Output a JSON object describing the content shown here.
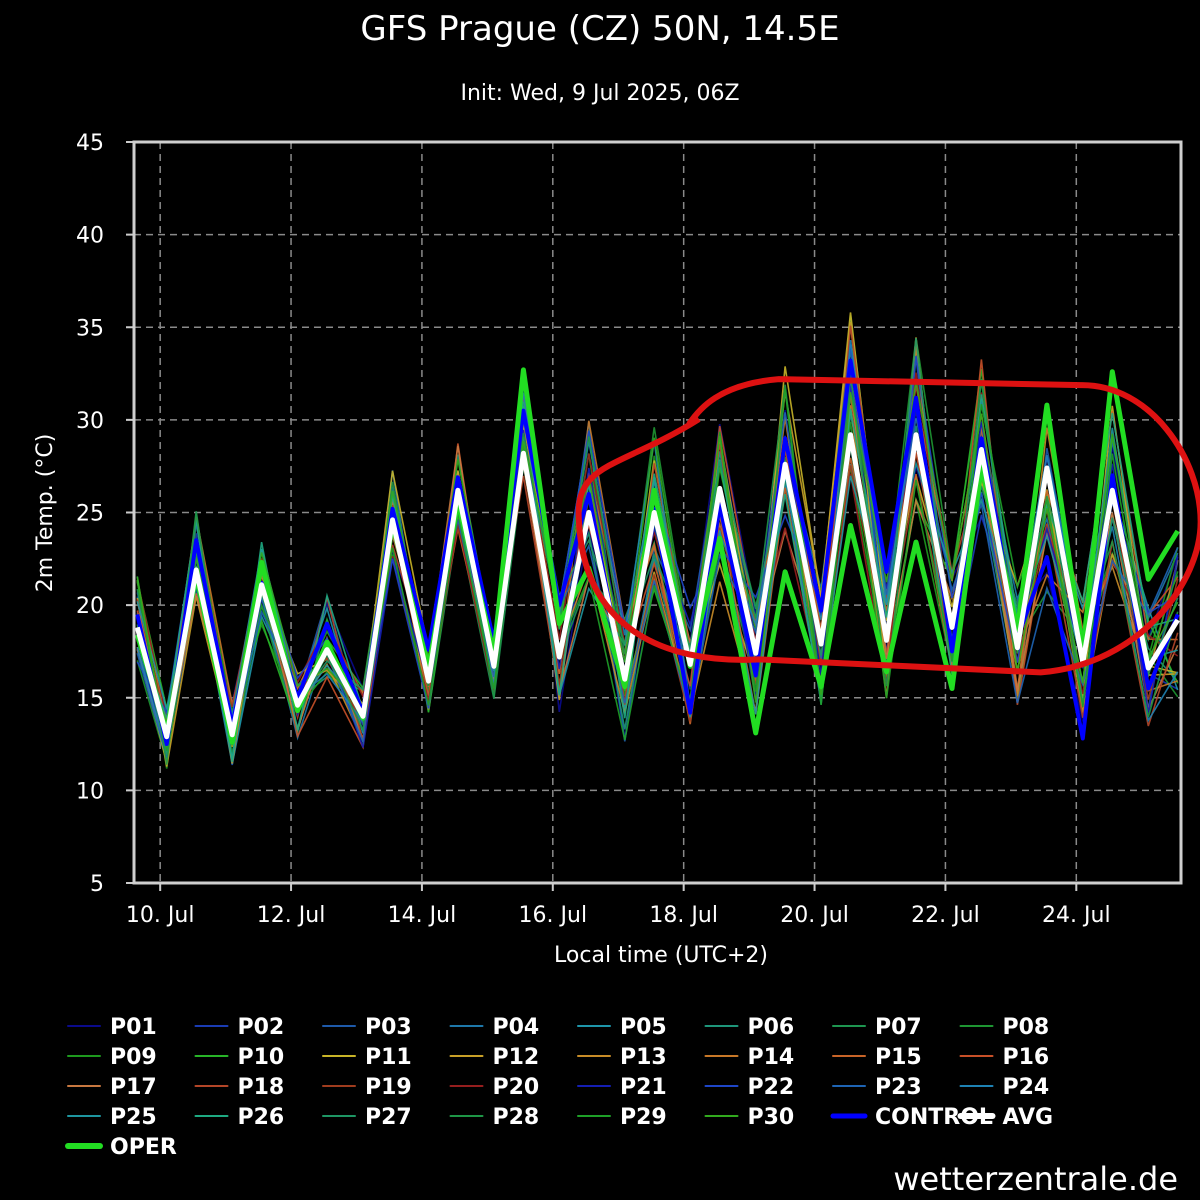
{
  "chart_data": {
    "type": "line",
    "title": "GFS Prague (CZ) 50N, 14.5E",
    "subtitle": "Init: Wed, 9 Jul 2025, 06Z",
    "xlabel": "Local time (UTC+2)",
    "ylabel": "2m Temp. (°C)",
    "ylim": [
      5,
      45
    ],
    "yticks": [
      5,
      10,
      15,
      20,
      25,
      30,
      35,
      40,
      45
    ],
    "xlim": [
      9.6,
      25.6
    ],
    "xticks": [
      {
        "day": 10,
        "label": "10. Jul"
      },
      {
        "day": 12,
        "label": "12. Jul"
      },
      {
        "day": 14,
        "label": "14. Jul"
      },
      {
        "day": 16,
        "label": "16. Jul"
      },
      {
        "day": 18,
        "label": "18. Jul"
      },
      {
        "day": 20,
        "label": "20. Jul"
      },
      {
        "day": 22,
        "label": "22. Jul"
      },
      {
        "day": 24,
        "label": "24. Jul"
      }
    ],
    "grid": true,
    "legend_position": "bottom",
    "x_days": [
      9.65,
      10.1,
      10.55,
      11.1,
      11.55,
      12.1,
      12.55,
      13.1,
      13.55,
      14.1,
      14.55,
      15.1,
      15.55,
      16.1,
      16.55,
      17.1,
      17.55,
      18.1,
      18.55,
      19.1,
      19.55,
      20.1,
      20.55,
      21.1,
      21.55,
      22.1,
      22.55,
      23.1,
      23.55,
      24.1,
      24.55,
      25.1,
      25.55
    ],
    "series": [
      {
        "name": "OPER",
        "color": "#22dd22",
        "width": 5,
        "values": [
          18.4,
          13.2,
          21.6,
          12.6,
          22.3,
          14.3,
          18.0,
          13.9,
          24.4,
          16.6,
          25.6,
          17.4,
          32.7,
          19.0,
          22.0,
          15.6,
          26.2,
          16.7,
          23.6,
          13.1,
          21.8,
          15.6,
          24.3,
          16.4,
          23.4,
          15.5,
          27.5,
          18.7,
          30.8,
          17.5,
          32.6,
          21.4,
          24.0
        ]
      },
      {
        "name": "CONTROL",
        "color": "#0000ff",
        "width": 4,
        "values": [
          19.5,
          12.5,
          23.5,
          13.5,
          21.2,
          15.0,
          19.0,
          14.2,
          25.2,
          17.6,
          26.9,
          18.0,
          30.5,
          20.0,
          26.0,
          15.7,
          25.2,
          14.2,
          25.4,
          16.2,
          29.0,
          19.7,
          33.2,
          21.8,
          31.2,
          17.5,
          29.0,
          18.2,
          22.6,
          12.8,
          27.0,
          15.5,
          19.5
        ]
      },
      {
        "name": "AVG",
        "color": "#ffffff",
        "width": 5,
        "values": [
          18.8,
          12.9,
          21.9,
          13.0,
          21.1,
          14.6,
          17.6,
          14.0,
          24.6,
          15.9,
          26.2,
          16.7,
          28.2,
          17.2,
          25.0,
          16.0,
          25.0,
          16.8,
          26.3,
          17.4,
          27.6,
          17.9,
          29.2,
          18.1,
          29.2,
          18.8,
          28.4,
          17.7,
          27.4,
          16.9,
          26.2,
          16.6,
          19.2
        ]
      }
    ],
    "ensemble": {
      "members": [
        "P01",
        "P02",
        "P03",
        "P04",
        "P05",
        "P06",
        "P07",
        "P08",
        "P09",
        "P10",
        "P11",
        "P12",
        "P13",
        "P14",
        "P15",
        "P16",
        "P17",
        "P18",
        "P19",
        "P20",
        "P21",
        "P22",
        "P23",
        "P24",
        "P25",
        "P26",
        "P27",
        "P28",
        "P29",
        "P30"
      ],
      "colors": [
        "#0a0a8c",
        "#1a3cb4",
        "#1e5aaa",
        "#1e78aa",
        "#1e96aa",
        "#1e967a",
        "#1e9650",
        "#1e9632",
        "#1e9a1e",
        "#28b428",
        "#c8b428",
        "#c8a028",
        "#c88c28",
        "#c87828",
        "#c86428",
        "#c85028",
        "#c87840",
        "#b44628",
        "#a03c1e",
        "#961e1e",
        "#141eb4",
        "#1e46c8",
        "#1e64b4",
        "#1e82b4",
        "#1e96a0",
        "#1eaa82",
        "#1e9664",
        "#1e9646",
        "#1ea028",
        "#32aa1e"
      ]
    },
    "legend": [
      {
        "label": "P01",
        "color": "#0a0a8c",
        "width": 2
      },
      {
        "label": "P02",
        "color": "#1a3cb4",
        "width": 2
      },
      {
        "label": "P03",
        "color": "#1e5aaa",
        "width": 2
      },
      {
        "label": "P04",
        "color": "#1e78aa",
        "width": 2
      },
      {
        "label": "P05",
        "color": "#1e96aa",
        "width": 2
      },
      {
        "label": "P06",
        "color": "#1e967a",
        "width": 2
      },
      {
        "label": "P07",
        "color": "#1e9650",
        "width": 2
      },
      {
        "label": "P08",
        "color": "#1e9632",
        "width": 2
      },
      {
        "label": "P09",
        "color": "#1e9a1e",
        "width": 2
      },
      {
        "label": "P10",
        "color": "#28b428",
        "width": 2
      },
      {
        "label": "P11",
        "color": "#c8b428",
        "width": 2
      },
      {
        "label": "P12",
        "color": "#c8a028",
        "width": 2
      },
      {
        "label": "P13",
        "color": "#c88c28",
        "width": 2
      },
      {
        "label": "P14",
        "color": "#c87828",
        "width": 2
      },
      {
        "label": "P15",
        "color": "#c86428",
        "width": 2
      },
      {
        "label": "P16",
        "color": "#c85028",
        "width": 2
      },
      {
        "label": "P17",
        "color": "#c87840",
        "width": 2
      },
      {
        "label": "P18",
        "color": "#b44628",
        "width": 2
      },
      {
        "label": "P19",
        "color": "#a03c1e",
        "width": 2
      },
      {
        "label": "P20",
        "color": "#961e1e",
        "width": 2
      },
      {
        "label": "P21",
        "color": "#141eb4",
        "width": 2
      },
      {
        "label": "P22",
        "color": "#1e46c8",
        "width": 2
      },
      {
        "label": "P23",
        "color": "#1e64b4",
        "width": 2
      },
      {
        "label": "P24",
        "color": "#1e82b4",
        "width": 2
      },
      {
        "label": "P25",
        "color": "#1e96a0",
        "width": 2
      },
      {
        "label": "P26",
        "color": "#1eaa82",
        "width": 2
      },
      {
        "label": "P27",
        "color": "#1e9664",
        "width": 2
      },
      {
        "label": "P28",
        "color": "#1e9646",
        "width": 2
      },
      {
        "label": "P29",
        "color": "#1ea028",
        "width": 2
      },
      {
        "label": "P30",
        "color": "#32aa1e",
        "width": 2
      },
      {
        "label": "CONTROL",
        "color": "#0000ff",
        "width": 5
      },
      {
        "label": "AVG",
        "color": "#ffffff",
        "width": 6
      },
      {
        "label": "OPER",
        "color": "#22dd22",
        "width": 6
      }
    ],
    "annotation": {
      "type": "hand-drawn-ellipse",
      "color": "#dd1111",
      "x_range": [
        16.4,
        25.9
      ],
      "y_range": [
        16.8,
        32.2
      ]
    }
  },
  "footer": {
    "site": "wetterzentrale.de"
  }
}
